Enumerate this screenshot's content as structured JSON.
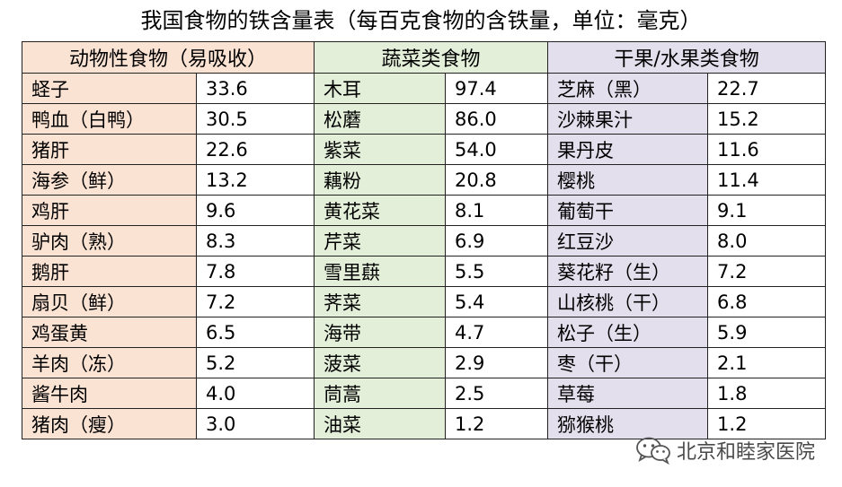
{
  "title": "我国食物的铁含量表（每百克食物的含铁量，单位：毫克）",
  "headers": {
    "animal": "动物性食物（易吸收）",
    "vegetable": "蔬菜类食物",
    "fruit": "干果/水果类食物"
  },
  "rows": [
    {
      "a_name": "蛏子",
      "a_val": "33.6",
      "v_name": "木耳",
      "v_val": "97.4",
      "f_name": "芝麻（黑）",
      "f_val": "22.7"
    },
    {
      "a_name": "鸭血（白鸭）",
      "a_val": "30.5",
      "v_name": "松蘑",
      "v_val": "86.0",
      "f_name": "沙棘果汁",
      "f_val": "15.2"
    },
    {
      "a_name": "猪肝",
      "a_val": "22.6",
      "v_name": "紫菜",
      "v_val": "54.0",
      "f_name": "果丹皮",
      "f_val": "11.6"
    },
    {
      "a_name": "海参（鲜）",
      "a_val": "13.2",
      "v_name": "藕粉",
      "v_val": "20.8",
      "f_name": "樱桃",
      "f_val": "11.4"
    },
    {
      "a_name": "鸡肝",
      "a_val": "9.6",
      "v_name": "黄花菜",
      "v_val": "8.1",
      "f_name": "葡萄干",
      "f_val": "9.1"
    },
    {
      "a_name": "驴肉（熟）",
      "a_val": "8.3",
      "v_name": "芹菜",
      "v_val": "6.9",
      "f_name": "红豆沙",
      "f_val": "8.0"
    },
    {
      "a_name": "鹅肝",
      "a_val": "7.8",
      "v_name": "雪里蕻",
      "v_val": "5.5",
      "f_name": "葵花籽（生）",
      "f_val": "7.2"
    },
    {
      "a_name": "扇贝（鲜）",
      "a_val": "7.2",
      "v_name": "荠菜",
      "v_val": "5.4",
      "f_name": "山核桃（干）",
      "f_val": "6.8"
    },
    {
      "a_name": "鸡蛋黄",
      "a_val": "6.5",
      "v_name": "海带",
      "v_val": "4.7",
      "f_name": "松子（生）",
      "f_val": "5.9"
    },
    {
      "a_name": "羊肉（冻）",
      "a_val": "5.2",
      "v_name": "菠菜",
      "v_val": "2.9",
      "f_name": "枣（干）",
      "f_val": "2.1"
    },
    {
      "a_name": "酱牛肉",
      "a_val": "4.0",
      "v_name": "茼蒿",
      "v_val": "2.5",
      "f_name": "草莓",
      "f_val": "1.8"
    },
    {
      "a_name": "猪肉（瘦）",
      "a_val": "3.0",
      "v_name": "油菜",
      "v_val": "1.2",
      "f_name": "猕猴桃",
      "f_val": "1.2"
    }
  ],
  "watermark": {
    "text": "北京和睦家医院",
    "icon": "wechat-icon"
  },
  "colors": {
    "animal": "#fbe3d4",
    "vegetable": "#e3efd9",
    "fruit": "#e3dfed"
  }
}
